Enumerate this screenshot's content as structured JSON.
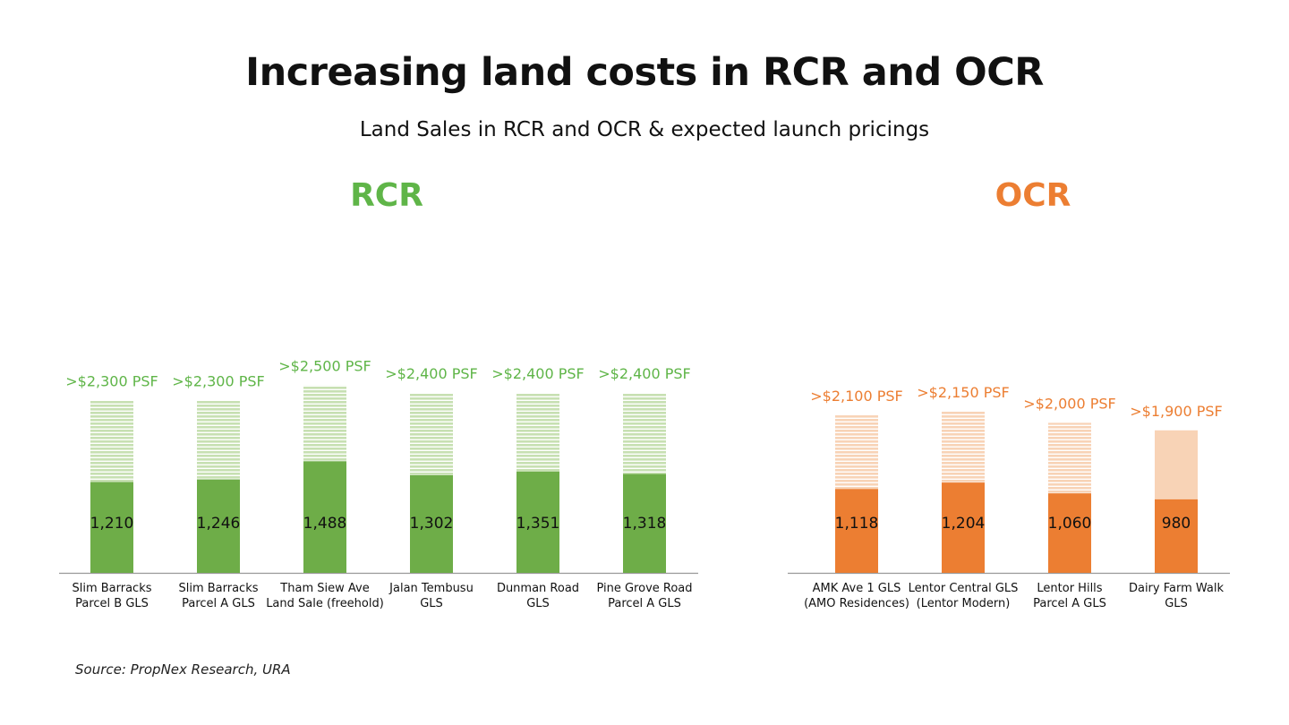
{
  "title": "Increasing land costs in RCR and OCR",
  "subtitle": "Land Sales in RCR and OCR & expected launch pricings",
  "source": "Source: PropNex Research, URA",
  "colors": {
    "rcr_solid": "#6ead48",
    "rcr_light": "#c7e0b2",
    "rcr_text": "#5fb548",
    "ocr_solid": "#ec7e32",
    "ocr_light": "#f8d3b6",
    "ocr_text": "#ec7e32",
    "axis": "#999999",
    "bar_label": "#111111"
  },
  "chart_data": {
    "type": "bar",
    "ylim": [
      0,
      2900
    ],
    "groups": [
      {
        "name": "RCR",
        "color_key": "rcr",
        "categories": [
          [
            "Slim Barracks",
            "Parcel B GLS"
          ],
          [
            "Slim Barracks",
            "Parcel A GLS"
          ],
          [
            "Tham Siew Ave",
            "Land Sale (freehold)"
          ],
          [
            "Jalan Tembusu",
            "GLS"
          ],
          [
            "Dunman Road",
            "GLS"
          ],
          [
            "Pine Grove Road",
            "Parcel A GLS"
          ]
        ],
        "land_cost": [
          1210,
          1246,
          1488,
          1302,
          1351,
          1318
        ],
        "land_cost_labels": [
          "1,210",
          "1,246",
          "1,488",
          "1,302",
          "1,351",
          "1,318"
        ],
        "expected_psf": [
          2300,
          2300,
          2500,
          2400,
          2400,
          2400
        ],
        "expected_psf_labels": [
          ">$2,300 PSF",
          ">$2,300 PSF",
          ">$2,500 PSF",
          ">$2,400 PSF",
          ">$2,400 PSF",
          ">$2,400 PSF"
        ],
        "striped": [
          true,
          true,
          true,
          true,
          true,
          true
        ]
      },
      {
        "name": "OCR",
        "color_key": "ocr",
        "categories": [
          [
            "AMK Ave 1 GLS",
            "(AMO Residences)"
          ],
          [
            "Lentor Central GLS",
            "(Lentor Modern)"
          ],
          [
            "Lentor Hills",
            "Parcel A GLS"
          ],
          [
            "Dairy Farm Walk",
            "GLS"
          ]
        ],
        "land_cost": [
          1118,
          1204,
          1060,
          980
        ],
        "land_cost_labels": [
          "1,118",
          "1,204",
          "1,060",
          "980"
        ],
        "expected_psf": [
          2100,
          2150,
          2000,
          1900
        ],
        "expected_psf_labels": [
          ">$2,100 PSF",
          ">$2,150 PSF",
          ">$2,000 PSF",
          ">$1,900 PSF"
        ],
        "striped": [
          true,
          true,
          true,
          false
        ]
      }
    ]
  }
}
